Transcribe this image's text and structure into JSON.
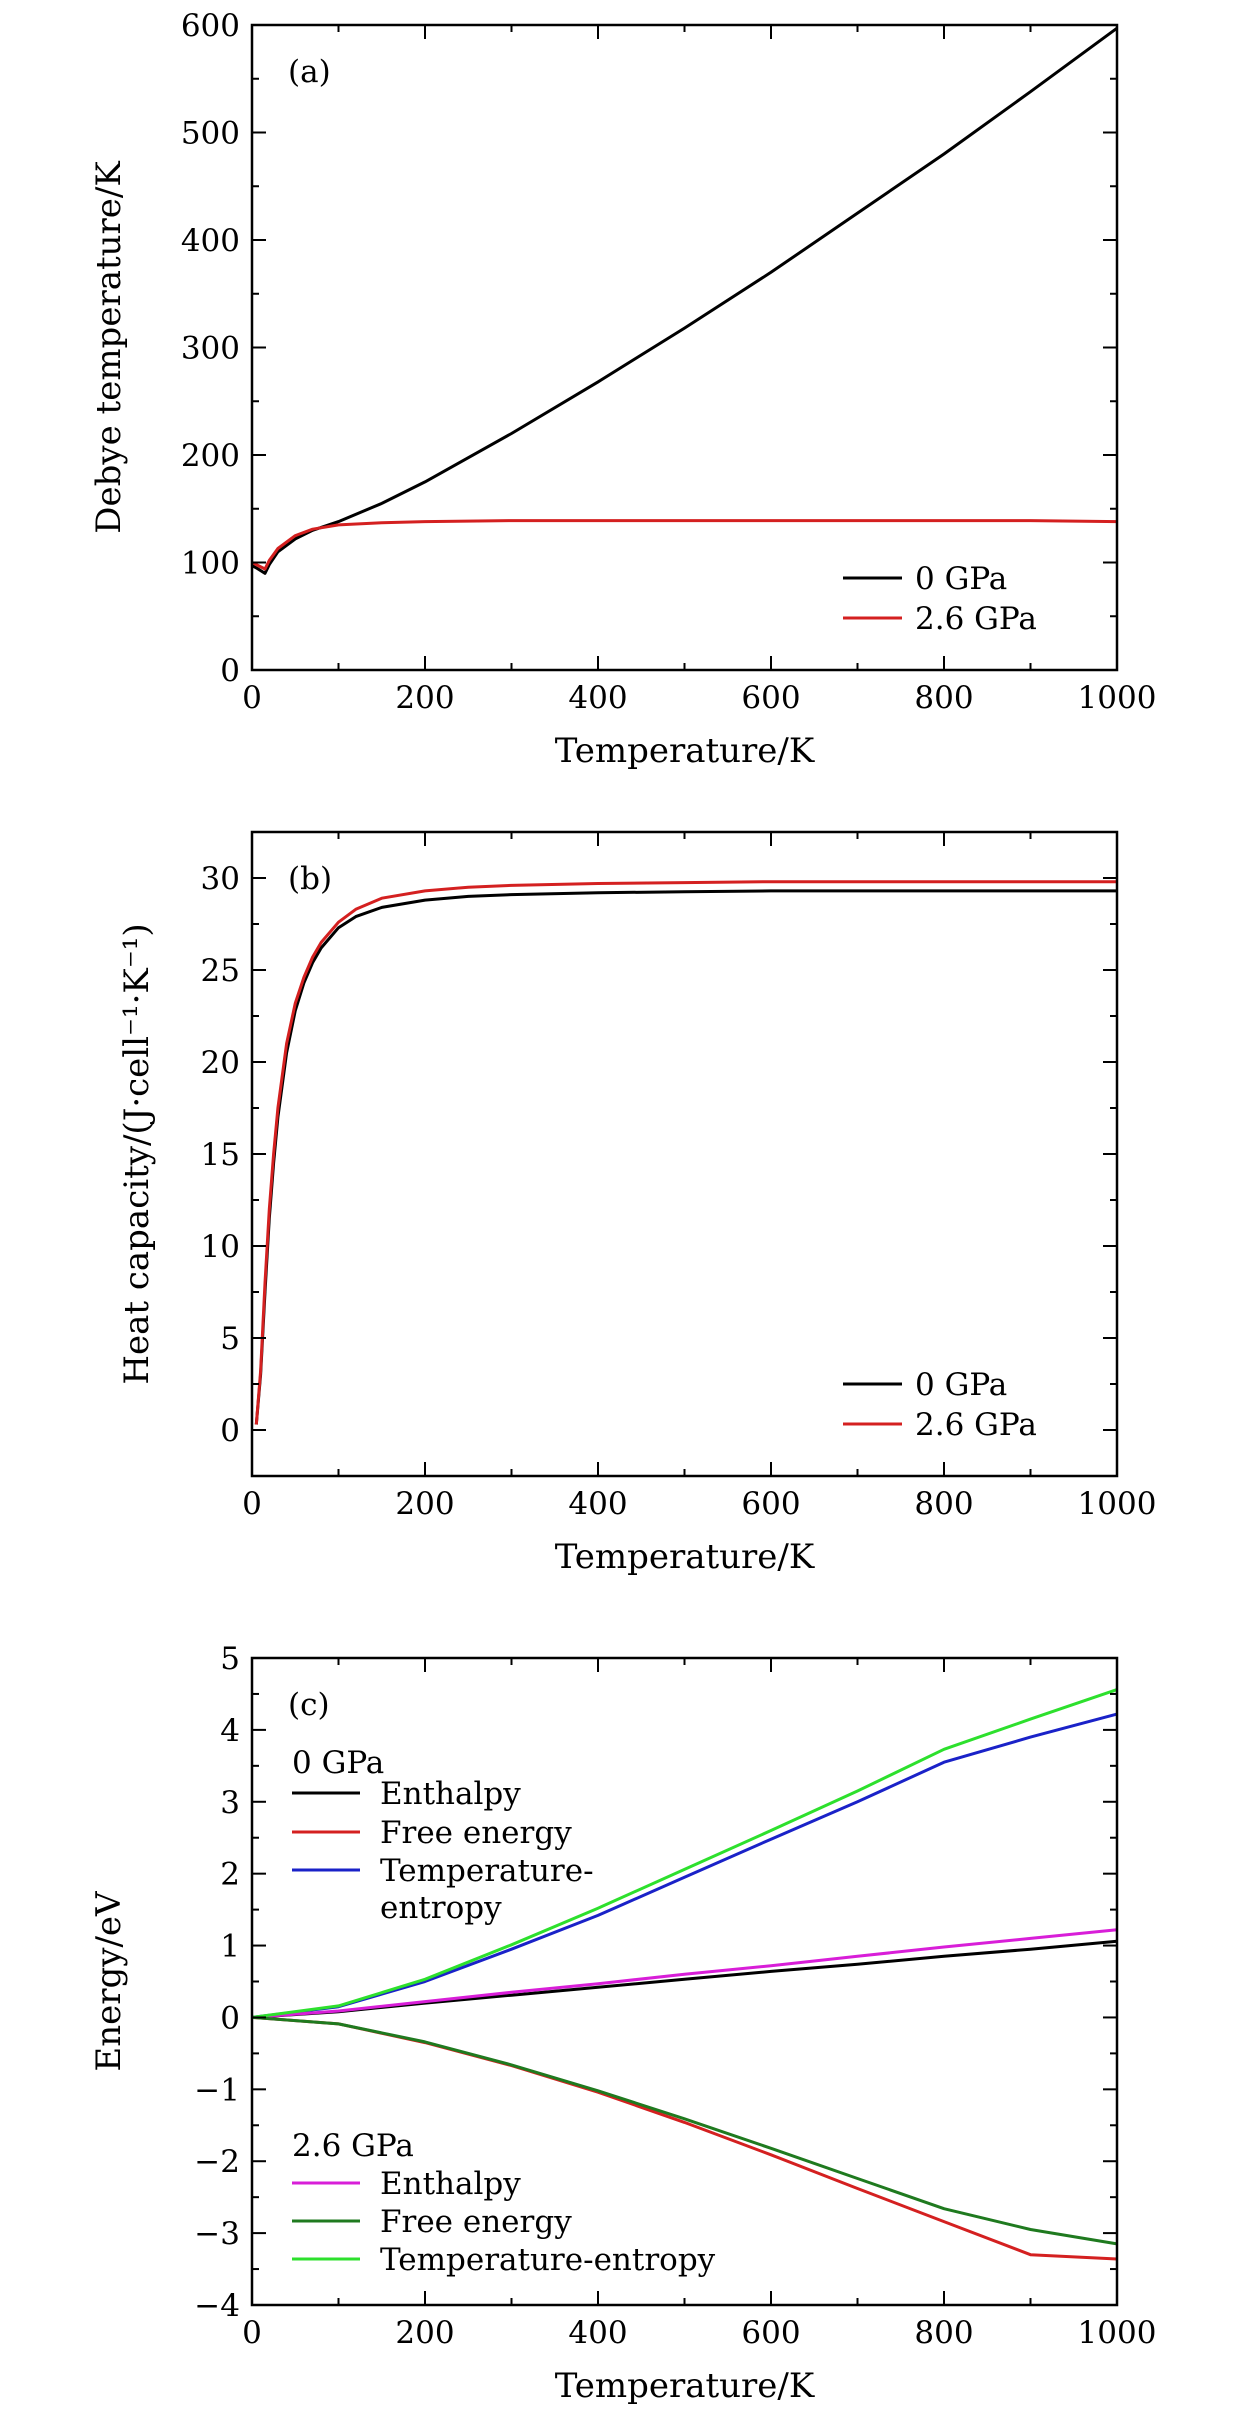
{
  "chart_data": [
    {
      "type": "line",
      "panel_label": "(a)",
      "xlabel": "Temperature/K",
      "ylabel": "Debye temperature/K",
      "xlim": [
        0,
        1000
      ],
      "ylim": [
        0,
        600
      ],
      "xticks": [
        0,
        200,
        400,
        600,
        800,
        1000
      ],
      "yticks": [
        0,
        100,
        200,
        300,
        400,
        500,
        600
      ],
      "legend_position": "bottom-right",
      "series": [
        {
          "name": "0 GPa",
          "color": "#000000",
          "x": [
            0,
            5,
            15,
            20,
            30,
            50,
            70,
            100,
            150,
            200,
            300,
            400,
            500,
            600,
            700,
            800,
            900,
            1000
          ],
          "y": [
            97,
            95,
            90,
            98,
            110,
            122,
            130,
            138,
            155,
            175,
            220,
            268,
            318,
            370,
            425,
            480,
            538,
            597
          ]
        },
        {
          "name": "2.6 GPa",
          "color": "#d42020",
          "x": [
            0,
            5,
            15,
            20,
            30,
            50,
            70,
            100,
            150,
            200,
            300,
            400,
            500,
            600,
            700,
            800,
            900,
            1000
          ],
          "y": [
            100,
            98,
            94,
            102,
            113,
            125,
            131,
            135,
            137,
            138,
            139,
            139,
            139,
            139,
            139,
            139,
            139,
            138
          ]
        }
      ]
    },
    {
      "type": "line",
      "panel_label": "(b)",
      "xlabel": "Temperature/K",
      "ylabel": "Heat capacity/(J·cell⁻¹·K⁻¹)",
      "xlim": [
        0,
        1000
      ],
      "ylim": [
        -2.5,
        32.5
      ],
      "xticks": [
        0,
        200,
        400,
        600,
        800,
        1000
      ],
      "yticks": [
        0,
        5,
        10,
        15,
        20,
        25,
        30
      ],
      "legend_position": "bottom-right",
      "series": [
        {
          "name": "0 GPa",
          "color": "#000000",
          "x": [
            5,
            10,
            15,
            20,
            25,
            30,
            40,
            50,
            60,
            70,
            80,
            100,
            120,
            150,
            200,
            250,
            300,
            400,
            500,
            600,
            700,
            800,
            900,
            1000
          ],
          "y": [
            0.3,
            3,
            7.5,
            11.5,
            14.5,
            17,
            20.5,
            22.8,
            24.3,
            25.4,
            26.2,
            27.3,
            27.9,
            28.4,
            28.8,
            29,
            29.1,
            29.2,
            29.25,
            29.3,
            29.3,
            29.3,
            29.3,
            29.3
          ]
        },
        {
          "name": "2.6 GPa",
          "color": "#d42020",
          "x": [
            5,
            10,
            15,
            20,
            25,
            30,
            40,
            50,
            60,
            70,
            80,
            100,
            120,
            150,
            200,
            250,
            300,
            400,
            500,
            600,
            700,
            800,
            900,
            1000
          ],
          "y": [
            0.3,
            3.2,
            8,
            12,
            15,
            17.5,
            21,
            23.2,
            24.6,
            25.7,
            26.5,
            27.6,
            28.3,
            28.9,
            29.3,
            29.5,
            29.6,
            29.7,
            29.75,
            29.8,
            29.8,
            29.8,
            29.8,
            29.8
          ]
        }
      ]
    },
    {
      "type": "line",
      "panel_label": "(c)",
      "xlabel": "Temperature/K",
      "ylabel": "Energy/eV",
      "xlim": [
        0,
        1000
      ],
      "ylim": [
        -4,
        5
      ],
      "xticks": [
        0,
        200,
        400,
        600,
        800,
        1000
      ],
      "yticks": [
        -4,
        -3,
        -2,
        -1,
        0,
        1,
        2,
        3,
        4,
        5
      ],
      "legend_groups": [
        {
          "title": "0 GPa",
          "position": "top-left",
          "entries": [
            "Enthalpy",
            "Free energy",
            "Temperature-",
            "entropy"
          ]
        },
        {
          "title": "2.6 GPa",
          "position": "bottom-left",
          "entries": [
            "Enthalpy",
            "Free energy",
            "Temperature-entropy"
          ]
        }
      ],
      "series": [
        {
          "name": "0 GPa Enthalpy",
          "color": "#000000",
          "x": [
            0,
            100,
            200,
            300,
            400,
            500,
            600,
            700,
            800,
            900,
            1000
          ],
          "y": [
            0,
            0.08,
            0.2,
            0.31,
            0.42,
            0.53,
            0.64,
            0.74,
            0.85,
            0.95,
            1.06
          ]
        },
        {
          "name": "0 GPa Free energy",
          "color": "#d42020",
          "x": [
            0,
            100,
            200,
            300,
            400,
            500,
            600,
            700,
            800,
            900,
            1000
          ],
          "y": [
            0,
            -0.09,
            -0.35,
            -0.67,
            -1.04,
            -1.46,
            -1.91,
            -2.38,
            -2.84,
            -3.3,
            -3.36
          ]
        },
        {
          "name": "0 GPa Temperature-entropy",
          "color": "#1a22c8",
          "x": [
            0,
            100,
            200,
            300,
            400,
            500,
            600,
            700,
            800,
            900,
            1000
          ],
          "y": [
            0,
            0.15,
            0.5,
            0.95,
            1.42,
            1.95,
            2.48,
            3.0,
            3.55,
            3.9,
            4.22
          ]
        },
        {
          "name": "2.6 GPa Enthalpy",
          "color": "#d81ed8",
          "x": [
            0,
            100,
            200,
            300,
            400,
            500,
            600,
            700,
            800,
            900,
            1000
          ],
          "y": [
            0,
            0.09,
            0.22,
            0.35,
            0.47,
            0.6,
            0.72,
            0.85,
            0.98,
            1.1,
            1.22
          ]
        },
        {
          "name": "2.6 GPa Free energy",
          "color": "#1f7a1f",
          "x": [
            0,
            100,
            200,
            300,
            400,
            500,
            600,
            700,
            800,
            900,
            1000
          ],
          "y": [
            0,
            -0.09,
            -0.34,
            -0.66,
            -1.02,
            -1.41,
            -1.82,
            -2.24,
            -2.66,
            -2.95,
            -3.15
          ]
        },
        {
          "name": "2.6 GPa Temperature-entropy",
          "color": "#2de02d",
          "x": [
            0,
            100,
            200,
            300,
            400,
            500,
            600,
            700,
            800,
            900,
            1000
          ],
          "y": [
            0,
            0.16,
            0.53,
            1.01,
            1.52,
            2.06,
            2.6,
            3.15,
            3.73,
            4.15,
            4.56
          ]
        }
      ]
    }
  ]
}
